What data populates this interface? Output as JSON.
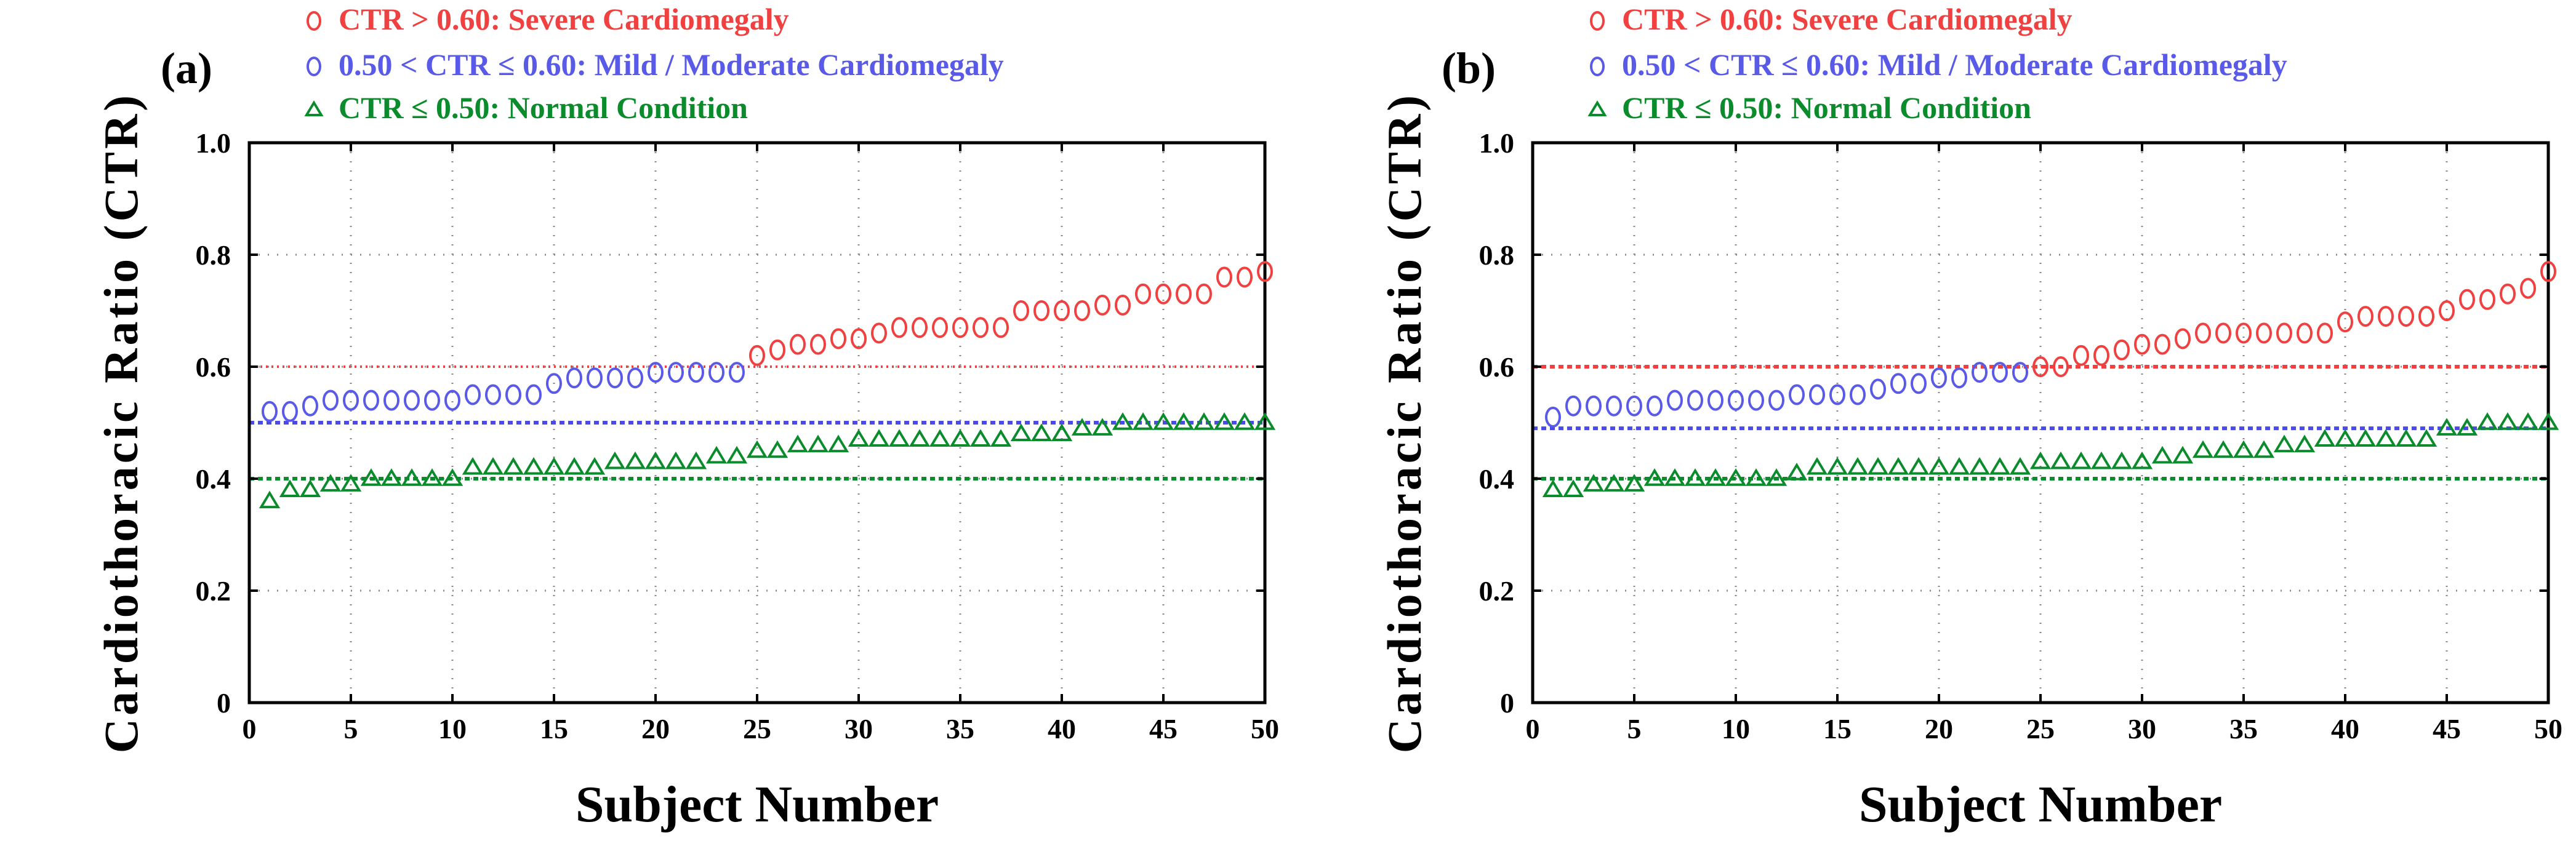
{
  "chart_data": [
    {
      "type": "scatter",
      "panel_label": "(a)",
      "xlabel": "Subject Number",
      "ylabel": "Cardiothoracic Ratio (CTR)",
      "xlim": [
        0,
        50
      ],
      "ylim": [
        0,
        1
      ],
      "x_ticks": [
        "0",
        "5",
        "10",
        "15",
        "20",
        "25",
        "30",
        "35",
        "40",
        "45",
        "50"
      ],
      "y_ticks": [
        "0",
        "0.2",
        "0.4",
        "0.6",
        "0.8",
        "1.0"
      ],
      "grid": true,
      "legend_position": "top-left",
      "reference_lines": [
        {
          "y": 0.6,
          "color": "#f04040",
          "style": "dotted"
        },
        {
          "y": 0.5,
          "color": "#4a4ae6",
          "style": "dashed"
        },
        {
          "y": 0.4,
          "color": "#0a8c2c",
          "style": "dashed"
        }
      ],
      "series": [
        {
          "name": "CTR > 0.60: Severe Cardiomegaly",
          "marker": "circle",
          "color": "#f04040",
          "x": [
            25,
            26,
            27,
            28,
            29,
            30,
            31,
            32,
            33,
            34,
            35,
            36,
            37,
            38,
            39,
            40,
            41,
            42,
            43,
            44,
            45,
            46,
            47,
            48,
            49,
            50
          ],
          "y": [
            0.62,
            0.63,
            0.64,
            0.64,
            0.65,
            0.65,
            0.66,
            0.67,
            0.67,
            0.67,
            0.67,
            0.67,
            0.67,
            0.7,
            0.7,
            0.7,
            0.7,
            0.71,
            0.71,
            0.73,
            0.73,
            0.73,
            0.73,
            0.76,
            0.76,
            0.77
          ]
        },
        {
          "name": "0.50 < CTR ≤ 0.60: Mild / Moderate Cardiomegaly",
          "marker": "circle",
          "color": "#5a5ae8",
          "x": [
            1,
            2,
            3,
            4,
            5,
            6,
            7,
            8,
            9,
            10,
            11,
            12,
            13,
            14,
            15,
            16,
            17,
            18,
            19,
            20,
            21,
            22,
            23,
            24
          ],
          "y": [
            0.52,
            0.52,
            0.53,
            0.54,
            0.54,
            0.54,
            0.54,
            0.54,
            0.54,
            0.54,
            0.55,
            0.55,
            0.55,
            0.55,
            0.57,
            0.58,
            0.58,
            0.58,
            0.58,
            0.59,
            0.59,
            0.59,
            0.59,
            0.59
          ]
        },
        {
          "name": "CTR ≤ 0.50: Normal Condition",
          "marker": "triangle",
          "color": "#0a8c2c",
          "x": [
            1,
            2,
            3,
            4,
            5,
            6,
            7,
            8,
            9,
            10,
            11,
            12,
            13,
            14,
            15,
            16,
            17,
            18,
            19,
            20,
            21,
            22,
            23,
            24,
            25,
            26,
            27,
            28,
            29,
            30,
            31,
            32,
            33,
            34,
            35,
            36,
            37,
            38,
            39,
            40,
            41,
            42,
            43,
            44,
            45,
            46,
            47,
            48,
            49,
            50
          ],
          "y": [
            0.36,
            0.38,
            0.38,
            0.39,
            0.39,
            0.4,
            0.4,
            0.4,
            0.4,
            0.4,
            0.42,
            0.42,
            0.42,
            0.42,
            0.42,
            0.42,
            0.42,
            0.43,
            0.43,
            0.43,
            0.43,
            0.43,
            0.44,
            0.44,
            0.45,
            0.45,
            0.46,
            0.46,
            0.46,
            0.47,
            0.47,
            0.47,
            0.47,
            0.47,
            0.47,
            0.47,
            0.47,
            0.48,
            0.48,
            0.48,
            0.49,
            0.49,
            0.5,
            0.5,
            0.5,
            0.5,
            0.5,
            0.5,
            0.5,
            0.5
          ]
        }
      ]
    },
    {
      "type": "scatter",
      "panel_label": "(b)",
      "xlabel": "Subject Number",
      "ylabel": "Cardiothoracic Ratio (CTR)",
      "xlim": [
        0,
        50
      ],
      "ylim": [
        0,
        1
      ],
      "x_ticks": [
        "0",
        "5",
        "10",
        "15",
        "20",
        "25",
        "30",
        "35",
        "40",
        "45",
        "50"
      ],
      "y_ticks": [
        "0",
        "0.2",
        "0.4",
        "0.6",
        "0.8",
        "1.0"
      ],
      "grid": true,
      "legend_position": "top-left",
      "reference_lines": [
        {
          "y": 0.6,
          "color": "#f04040",
          "style": "dashed"
        },
        {
          "y": 0.49,
          "color": "#4a4ae6",
          "style": "dashed"
        },
        {
          "y": 0.4,
          "color": "#0a8c2c",
          "style": "dashed"
        }
      ],
      "series": [
        {
          "name": "CTR > 0.60: Severe Cardiomegaly",
          "marker": "circle",
          "color": "#f04040",
          "x": [
            25,
            26,
            27,
            28,
            29,
            30,
            31,
            32,
            33,
            34,
            35,
            36,
            37,
            38,
            39,
            40,
            41,
            42,
            43,
            44,
            45,
            46,
            47,
            48,
            49,
            50
          ],
          "y": [
            0.6,
            0.6,
            0.62,
            0.62,
            0.63,
            0.64,
            0.64,
            0.65,
            0.66,
            0.66,
            0.66,
            0.66,
            0.66,
            0.66,
            0.66,
            0.68,
            0.69,
            0.69,
            0.69,
            0.69,
            0.7,
            0.72,
            0.72,
            0.73,
            0.74,
            0.77
          ]
        },
        {
          "name": "0.50 < CTR ≤ 0.60: Mild / Moderate Cardiomegaly",
          "marker": "circle",
          "color": "#5a5ae8",
          "x": [
            1,
            2,
            3,
            4,
            5,
            6,
            7,
            8,
            9,
            10,
            11,
            12,
            13,
            14,
            15,
            16,
            17,
            18,
            19,
            20,
            21,
            22,
            23,
            24
          ],
          "y": [
            0.51,
            0.53,
            0.53,
            0.53,
            0.53,
            0.53,
            0.54,
            0.54,
            0.54,
            0.54,
            0.54,
            0.54,
            0.55,
            0.55,
            0.55,
            0.55,
            0.56,
            0.57,
            0.57,
            0.58,
            0.58,
            0.59,
            0.59,
            0.59
          ]
        },
        {
          "name": "CTR ≤ 0.50: Normal Condition",
          "marker": "triangle",
          "color": "#0a8c2c",
          "x": [
            1,
            2,
            3,
            4,
            5,
            6,
            7,
            8,
            9,
            10,
            11,
            12,
            13,
            14,
            15,
            16,
            17,
            18,
            19,
            20,
            21,
            22,
            23,
            24,
            25,
            26,
            27,
            28,
            29,
            30,
            31,
            32,
            33,
            34,
            35,
            36,
            37,
            38,
            39,
            40,
            41,
            42,
            43,
            44,
            45,
            46,
            47,
            48,
            49,
            50
          ],
          "y": [
            0.38,
            0.38,
            0.39,
            0.39,
            0.39,
            0.4,
            0.4,
            0.4,
            0.4,
            0.4,
            0.4,
            0.4,
            0.41,
            0.42,
            0.42,
            0.42,
            0.42,
            0.42,
            0.42,
            0.42,
            0.42,
            0.42,
            0.42,
            0.42,
            0.43,
            0.43,
            0.43,
            0.43,
            0.43,
            0.43,
            0.44,
            0.44,
            0.45,
            0.45,
            0.45,
            0.45,
            0.46,
            0.46,
            0.47,
            0.47,
            0.47,
            0.47,
            0.47,
            0.47,
            0.49,
            0.49,
            0.5,
            0.5,
            0.5,
            0.5
          ]
        }
      ]
    }
  ]
}
